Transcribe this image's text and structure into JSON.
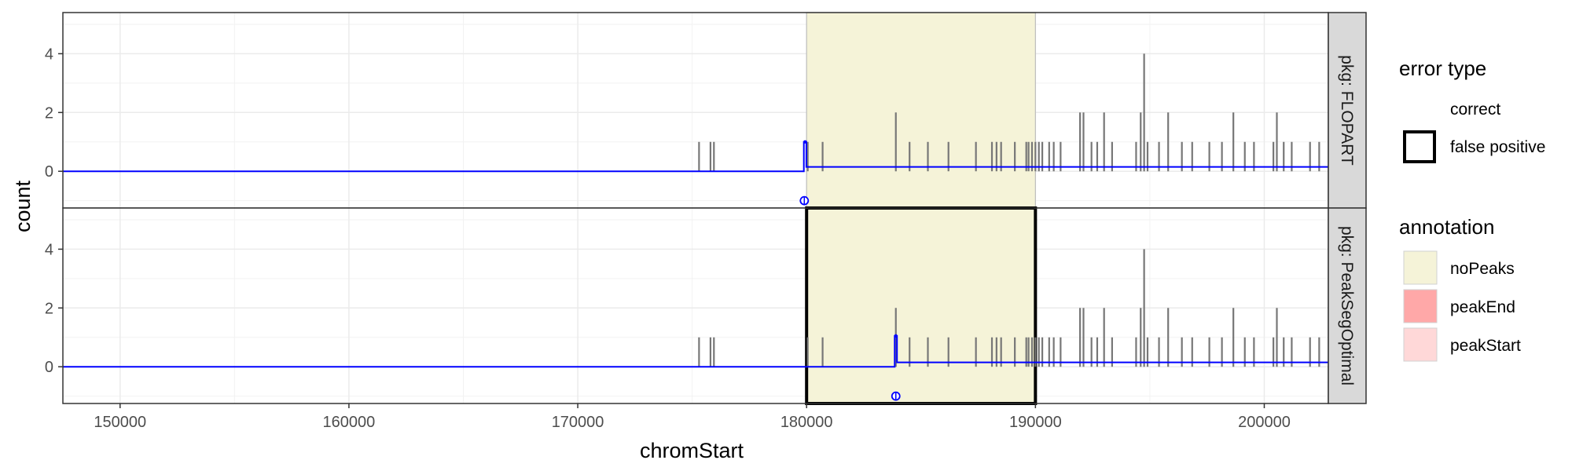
{
  "chart_data": {
    "type": "line",
    "xlabel": "chromStart",
    "ylabel": "count",
    "xlim": [
      147500,
      202800
    ],
    "ylim": [
      -1.25,
      5.4
    ],
    "x_ticks": [
      150000,
      160000,
      170000,
      180000,
      190000,
      200000
    ],
    "x_tick_labels": [
      "150000",
      "160000",
      "170000",
      "180000",
      "190000",
      "200000"
    ],
    "y_ticks": [
      0,
      2,
      4
    ],
    "y_tick_labels": [
      "0",
      "2",
      "4"
    ],
    "grid": true,
    "annotation_region": {
      "start": 180000,
      "end": 190000,
      "annotation": "noPeaks"
    },
    "coverage": {
      "description": "read count bars (same in both panels)",
      "x": [
        175300,
        175800,
        175950,
        180050,
        180700,
        183900,
        184500,
        185300,
        186200,
        187400,
        188100,
        188300,
        188500,
        189100,
        189600,
        189700,
        189850,
        190000,
        190150,
        190300,
        190600,
        190800,
        191100,
        191950,
        192100,
        192450,
        192700,
        193000,
        193350,
        194400,
        194600,
        194750,
        194900,
        195400,
        195800,
        196400,
        196850,
        197600,
        198150,
        198650,
        199150,
        199550,
        200400,
        200550,
        200850,
        201200,
        202000,
        202400
      ],
      "y": [
        1,
        1,
        1,
        1,
        1,
        2,
        1,
        1,
        1,
        1,
        1,
        1,
        1,
        1,
        1,
        1,
        1,
        1,
        1,
        1,
        1,
        1,
        1,
        2,
        2,
        1,
        1,
        2,
        1,
        1,
        2,
        4,
        1,
        1,
        2,
        1,
        1,
        1,
        1,
        2,
        1,
        1,
        1,
        2,
        1,
        1,
        1,
        1
      ]
    },
    "series": [
      {
        "name": "FLOPART",
        "segments": [
          {
            "start": 147500,
            "end": 179880,
            "mean": 0
          },
          {
            "start": 179880,
            "end": 179990,
            "mean": 1
          },
          {
            "start": 179990,
            "end": 202800,
            "mean": 0.15
          }
        ],
        "changepoints": [
          179900
        ],
        "error_type": "correct"
      },
      {
        "name": "PeakSegOptimal",
        "segments": [
          {
            "start": 147500,
            "end": 183850,
            "mean": 0
          },
          {
            "start": 183850,
            "end": 183950,
            "mean": 1.05
          },
          {
            "start": 183950,
            "end": 202800,
            "mean": 0.15
          }
        ],
        "changepoints": [
          183900
        ],
        "error_type": "false positive"
      }
    ],
    "panels": [
      {
        "strip": "pkg: FLOPART",
        "error_type": "correct"
      },
      {
        "strip": "pkg: PeakSegOptimal",
        "error_type": "false positive"
      }
    ],
    "legend": {
      "position": "right",
      "error_type": {
        "title": "error type",
        "items": [
          "correct",
          "false positive"
        ]
      },
      "annotation": {
        "title": "annotation",
        "items": [
          {
            "label": "noPeaks",
            "color": "#f5f3d8"
          },
          {
            "label": "peakEnd",
            "color": "#ffa8a8"
          },
          {
            "label": "peakStart",
            "color": "#ffd8d8"
          }
        ]
      }
    },
    "colors": {
      "coverage": "#777777",
      "segments": "#0000ff",
      "grid": "#ebebeb",
      "strip": "#d9d9d9"
    }
  }
}
